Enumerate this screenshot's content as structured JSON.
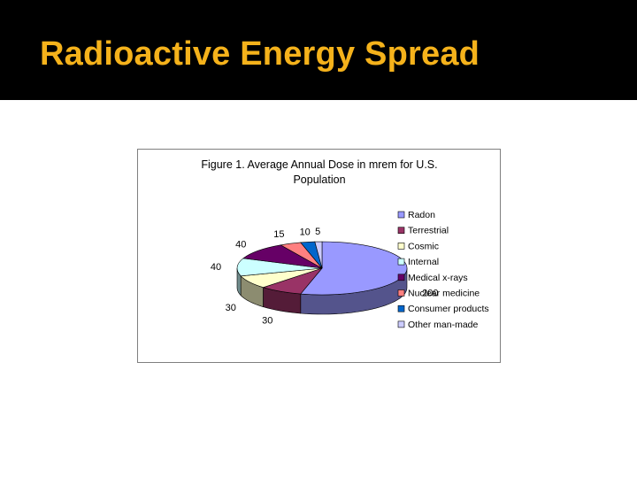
{
  "slide": {
    "title": "Radioactive Energy Spread",
    "colors": {
      "background": "#ffffff",
      "title_bar": "#000000",
      "title_text": "#f5b21b"
    }
  },
  "chart_data": {
    "type": "pie",
    "title_lines": [
      "Figure 1. Average Annual Dose in mrem for U.S.",
      "Population"
    ],
    "categories": [
      "Radon",
      "Terrestrial",
      "Cosmic",
      "Internal",
      "Medical x-rays",
      "Nuclear medicine",
      "Consumer products",
      "Other man-made"
    ],
    "values": [
      200,
      30,
      30,
      40,
      40,
      15,
      10,
      5
    ],
    "labels": [
      "200",
      "30",
      "30",
      "40",
      "40",
      "15",
      "10",
      "5"
    ],
    "colors": [
      "#9999ff",
      "#993366",
      "#ffffcc",
      "#ccffff",
      "#660066",
      "#ff8080",
      "#0066cc",
      "#ccccff"
    ],
    "three_d": true,
    "legend_position": "right"
  }
}
